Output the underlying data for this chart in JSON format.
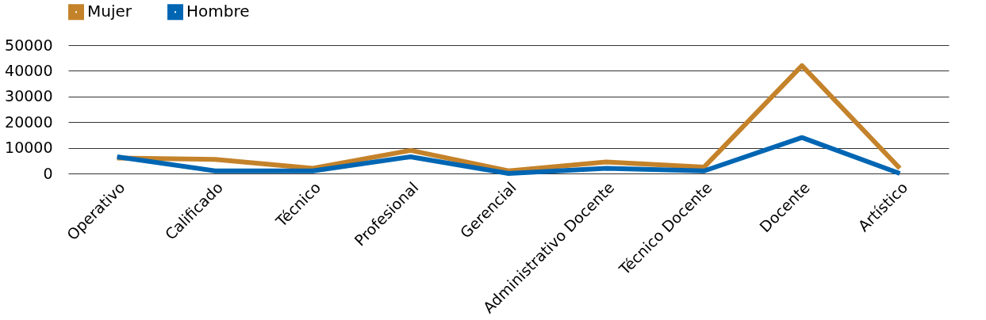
{
  "chart_data": {
    "type": "line",
    "categories": [
      "Operativo",
      "Calificado",
      "Técnico",
      "Profesional",
      "Gerencial",
      "Administrativo Docente",
      "Técnico Docente",
      "Docente",
      "Artístico"
    ],
    "series": [
      {
        "name": "Mujer",
        "color": "#c4822a",
        "values": [
          6000,
          5500,
          2000,
          9000,
          1000,
          4500,
          2500,
          42000,
          2000
        ]
      },
      {
        "name": "Hombre",
        "color": "#0066b3",
        "values": [
          6500,
          1000,
          1000,
          6500,
          0,
          2000,
          1000,
          14000,
          0
        ]
      }
    ],
    "ylim": [
      0,
      50000
    ],
    "yticks": [
      0,
      10000,
      20000,
      30000,
      40000,
      50000
    ],
    "grid": "y",
    "legend": "top",
    "marker": "none",
    "line_style": "solid"
  }
}
